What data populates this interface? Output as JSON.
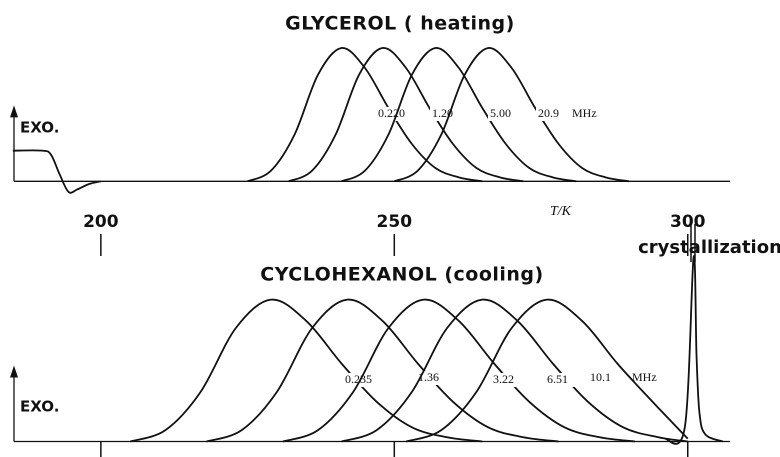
{
  "chart_data": [
    {
      "type": "line",
      "title": "GLYCEROL ( heating)",
      "y_label": "EXO.",
      "x_label": "T/K",
      "unit": "MHz",
      "xlim": [
        185.2,
        307.2
      ],
      "ylim": [
        -0.14,
        1.06
      ],
      "xticks": [
        200,
        250,
        300
      ],
      "tick_labels": true,
      "color": "#111",
      "series": [
        {
          "x": [
            185,
            190,
            191.5,
            193,
            194.5,
            196,
            198,
            200
          ],
          "values": [
            0.23,
            0.23,
            0.2,
            0.05,
            -0.08,
            -0.06,
            -0.02,
            0
          ]
        },
        {
          "name": "0.220",
          "x": [
            225,
            229,
            233,
            237,
            241,
            245,
            249,
            253,
            257,
            261,
            265
          ],
          "values": [
            0,
            0.08,
            0.35,
            0.8,
            1,
            0.85,
            0.55,
            0.28,
            0.1,
            0.03,
            0
          ]
        },
        {
          "name": "1.20",
          "x": [
            232,
            236,
            240,
            244,
            248,
            252,
            256,
            260,
            264,
            268,
            272
          ],
          "values": [
            0,
            0.08,
            0.35,
            0.8,
            1,
            0.85,
            0.55,
            0.28,
            0.1,
            0.03,
            0
          ]
        },
        {
          "name": "5.00",
          "x": [
            241,
            245,
            249,
            253,
            257,
            261,
            265,
            269,
            273,
            277,
            281
          ],
          "values": [
            0,
            0.08,
            0.35,
            0.8,
            1,
            0.85,
            0.55,
            0.28,
            0.1,
            0.03,
            0
          ]
        },
        {
          "name": "20.9",
          "x": [
            250,
            254,
            258,
            262,
            266,
            270,
            274,
            278,
            282,
            286,
            290
          ],
          "values": [
            0,
            0.08,
            0.35,
            0.8,
            1,
            0.85,
            0.55,
            0.28,
            0.1,
            0.03,
            0
          ]
        }
      ]
    },
    {
      "type": "line",
      "title": "CYCLOHEXANOL (cooling)",
      "y_label": "EXO.",
      "annotation": "crystallization",
      "unit": "MHz",
      "xlim": [
        185.2,
        307.2
      ],
      "ylim": [
        -0.06,
        1.35
      ],
      "xticks": [
        200,
        250,
        300
      ],
      "tick_labels": false,
      "color": "#111",
      "series": [
        {
          "name": "0.235",
          "x": [
            205,
            211,
            217,
            223,
            229,
            235,
            241,
            247,
            253,
            259,
            265
          ],
          "values": [
            0,
            0.08,
            0.35,
            0.8,
            1,
            0.85,
            0.55,
            0.28,
            0.1,
            0.03,
            0
          ]
        },
        {
          "name": "1.36",
          "x": [
            218,
            224,
            230,
            236,
            242,
            248,
            254,
            260,
            266,
            272,
            278
          ],
          "values": [
            0,
            0.08,
            0.35,
            0.8,
            1,
            0.85,
            0.55,
            0.28,
            0.1,
            0.03,
            0
          ]
        },
        {
          "name": "3.22",
          "x": [
            231,
            237,
            243,
            249,
            255,
            261,
            267,
            273,
            279,
            285,
            291
          ],
          "values": [
            0,
            0.08,
            0.35,
            0.8,
            1,
            0.85,
            0.55,
            0.28,
            0.1,
            0.03,
            0
          ]
        },
        {
          "name": "6.51",
          "x": [
            241,
            247,
            253,
            259,
            265,
            271,
            277,
            283,
            289,
            295,
            300
          ],
          "values": [
            0,
            0.08,
            0.35,
            0.8,
            1,
            0.85,
            0.55,
            0.28,
            0.1,
            0.03,
            0
          ]
        },
        {
          "name": "10.1",
          "x": [
            252,
            258,
            264,
            270,
            276,
            282,
            288,
            294,
            300
          ],
          "values": [
            0,
            0.08,
            0.35,
            0.8,
            1,
            0.85,
            0.55,
            0.28,
            0.02
          ]
        },
        {
          "x": [
            296,
            299.5,
            301,
            301.5,
            302,
            303,
            306
          ],
          "values": [
            0.02,
            0.1,
            1.3,
            0.6,
            0.2,
            0.05,
            0
          ]
        }
      ]
    }
  ]
}
